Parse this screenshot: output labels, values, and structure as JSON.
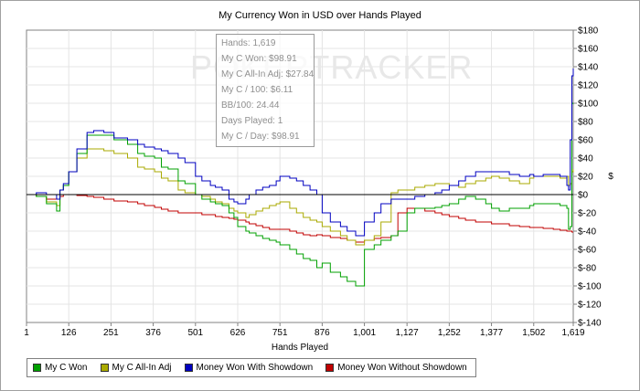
{
  "chart_data": {
    "type": "line",
    "title": "My Currency Won in USD over Hands Played",
    "xlabel": "Hands Played",
    "ylabel": "$",
    "xlim": [
      1,
      1619
    ],
    "ylim": [
      -140,
      180
    ],
    "x_ticks": [
      1,
      126,
      251,
      376,
      501,
      626,
      751,
      876,
      1001,
      1127,
      1252,
      1377,
      1502,
      1619
    ],
    "x_tick_labels": [
      "1",
      "126",
      "251",
      "376",
      "501",
      "626",
      "751",
      "876",
      "1,001",
      "1,127",
      "1,252",
      "1,377",
      "1,502",
      "1,619"
    ],
    "y_ticks": [
      -140,
      -120,
      -100,
      -80,
      -60,
      -40,
      -20,
      0,
      20,
      40,
      60,
      80,
      100,
      120,
      140,
      160,
      180
    ],
    "y_tick_labels": [
      "$-140",
      "$-120",
      "$-100",
      "$-80",
      "$-60",
      "$-40",
      "$-20",
      "$0",
      "$20",
      "$40",
      "$60",
      "$80",
      "$100",
      "$120",
      "$140",
      "$160",
      "$180"
    ],
    "grid": true,
    "legend_position": "bottom-left",
    "series": [
      {
        "name": "My C Won",
        "color": "#00a000",
        "x": [
          1,
          30,
          60,
          90,
          100,
          110,
          126,
          150,
          180,
          200,
          230,
          260,
          300,
          330,
          350,
          380,
          400,
          420,
          450,
          470,
          501,
          520,
          545,
          560,
          580,
          600,
          615,
          626,
          650,
          660,
          680,
          700,
          720,
          740,
          751,
          780,
          800,
          820,
          840,
          860,
          876,
          900,
          930,
          950,
          975,
          1001,
          1030,
          1050,
          1080,
          1100,
          1127,
          1150,
          1180,
          1210,
          1230,
          1252,
          1280,
          1300,
          1330,
          1360,
          1377,
          1400,
          1430,
          1460,
          1490,
          1502,
          1530,
          1560,
          1580,
          1600,
          1605,
          1610,
          1615,
          1619
        ],
        "values": [
          0,
          -2,
          -10,
          -18,
          5,
          10,
          25,
          45,
          65,
          65,
          65,
          60,
          55,
          45,
          42,
          40,
          30,
          28,
          15,
          12,
          0,
          -5,
          -8,
          -10,
          -12,
          -20,
          -25,
          -35,
          -40,
          -42,
          -45,
          -48,
          -50,
          -52,
          -55,
          -60,
          -65,
          -70,
          -72,
          -80,
          -75,
          -85,
          -90,
          -95,
          -100,
          -60,
          -55,
          -50,
          -45,
          -40,
          -20,
          -15,
          -15,
          -14,
          -12,
          -10,
          -5,
          -2,
          -5,
          -10,
          -15,
          -18,
          -15,
          -15,
          -12,
          -10,
          -10,
          -10,
          -12,
          -15,
          -38,
          -35,
          100,
          98.91
        ]
      },
      {
        "name": "My C All-In Adj",
        "color": "#aaaa00",
        "x": [
          1,
          30,
          60,
          90,
          100,
          110,
          126,
          150,
          180,
          200,
          230,
          260,
          300,
          330,
          350,
          380,
          400,
          420,
          450,
          470,
          501,
          520,
          545,
          560,
          580,
          600,
          615,
          626,
          650,
          660,
          680,
          700,
          720,
          740,
          751,
          780,
          800,
          820,
          840,
          860,
          876,
          900,
          930,
          950,
          975,
          1001,
          1030,
          1050,
          1080,
          1100,
          1127,
          1150,
          1180,
          1210,
          1230,
          1252,
          1280,
          1300,
          1330,
          1360,
          1377,
          1400,
          1430,
          1460,
          1490,
          1502,
          1530,
          1560,
          1580,
          1600,
          1605,
          1610,
          1615,
          1619
        ],
        "values": [
          0,
          -2,
          -8,
          -12,
          5,
          10,
          25,
          40,
          50,
          50,
          48,
          45,
          40,
          30,
          28,
          25,
          18,
          15,
          5,
          2,
          0,
          -2,
          -5,
          -8,
          -10,
          -15,
          -18,
          -20,
          -25,
          -22,
          -18,
          -15,
          -12,
          -10,
          -8,
          -15,
          -20,
          -25,
          -28,
          -30,
          -35,
          -40,
          -45,
          -50,
          -55,
          -50,
          -45,
          -30,
          2,
          5,
          5,
          8,
          10,
          12,
          12,
          10,
          8,
          12,
          15,
          18,
          20,
          18,
          15,
          12,
          18,
          20,
          20,
          20,
          18,
          20,
          10,
          12,
          25,
          27.84
        ]
      },
      {
        "name": "Money Won With Showdown",
        "color": "#0000c0",
        "x": [
          1,
          30,
          60,
          90,
          100,
          110,
          126,
          150,
          180,
          200,
          230,
          260,
          300,
          330,
          350,
          380,
          400,
          420,
          450,
          470,
          501,
          520,
          545,
          560,
          580,
          600,
          615,
          626,
          650,
          660,
          680,
          700,
          720,
          740,
          751,
          780,
          800,
          820,
          840,
          860,
          876,
          900,
          930,
          950,
          975,
          1001,
          1030,
          1050,
          1080,
          1100,
          1127,
          1150,
          1180,
          1210,
          1230,
          1252,
          1280,
          1300,
          1330,
          1360,
          1377,
          1400,
          1430,
          1460,
          1490,
          1502,
          1530,
          1560,
          1580,
          1600,
          1605,
          1610,
          1615,
          1619
        ],
        "values": [
          0,
          2,
          0,
          -5,
          5,
          12,
          25,
          50,
          68,
          70,
          68,
          62,
          60,
          55,
          52,
          50,
          48,
          45,
          40,
          35,
          20,
          15,
          10,
          8,
          5,
          -5,
          -8,
          -10,
          -5,
          0,
          5,
          8,
          10,
          15,
          20,
          18,
          15,
          10,
          5,
          0,
          -20,
          -30,
          -35,
          -40,
          -45,
          -30,
          -20,
          -10,
          -5,
          -5,
          -5,
          -2,
          0,
          2,
          5,
          10,
          15,
          20,
          25,
          25,
          25,
          25,
          22,
          20,
          22,
          20,
          22,
          22,
          20,
          10,
          5,
          60,
          130,
          138
        ]
      },
      {
        "name": "Money Won Without Showdown",
        "color": "#c00000",
        "x": [
          1,
          30,
          60,
          90,
          100,
          110,
          126,
          150,
          180,
          200,
          230,
          260,
          300,
          330,
          350,
          380,
          400,
          420,
          450,
          470,
          501,
          520,
          545,
          560,
          580,
          600,
          615,
          626,
          650,
          660,
          680,
          700,
          720,
          740,
          751,
          780,
          800,
          820,
          840,
          860,
          876,
          900,
          930,
          950,
          975,
          1001,
          1030,
          1050,
          1080,
          1100,
          1127,
          1150,
          1180,
          1210,
          1230,
          1252,
          1280,
          1300,
          1330,
          1360,
          1377,
          1400,
          1430,
          1460,
          1490,
          1502,
          1530,
          1560,
          1580,
          1600,
          1605,
          1610,
          1615,
          1619
        ],
        "values": [
          0,
          -2,
          -5,
          -5,
          -2,
          0,
          0,
          -1,
          -2,
          -3,
          -5,
          -7,
          -8,
          -10,
          -12,
          -14,
          -16,
          -18,
          -20,
          -20,
          -20,
          -22,
          -22,
          -24,
          -25,
          -26,
          -27,
          -28,
          -30,
          -32,
          -34,
          -36,
          -38,
          -38,
          -38,
          -40,
          -42,
          -44,
          -45,
          -44,
          -45,
          -47,
          -48,
          -50,
          -52,
          -50,
          -48,
          -47,
          -45,
          -20,
          -15,
          -15,
          -18,
          -20,
          -22,
          -24,
          -26,
          -28,
          -30,
          -30,
          -32,
          -32,
          -34,
          -35,
          -36,
          -36,
          -37,
          -38,
          -39,
          -40,
          -40,
          -40,
          -41,
          -41
        ]
      }
    ],
    "tooltip": [
      "Hands: 1,619",
      "My C Won: $98.91",
      "My C All-In Adj: $27.84",
      "My C / 100: $6.11",
      "BB/100: 24.44",
      "Days Played: 1",
      "My C / Day: $98.91"
    ],
    "watermark": "POKERTRACKER"
  }
}
